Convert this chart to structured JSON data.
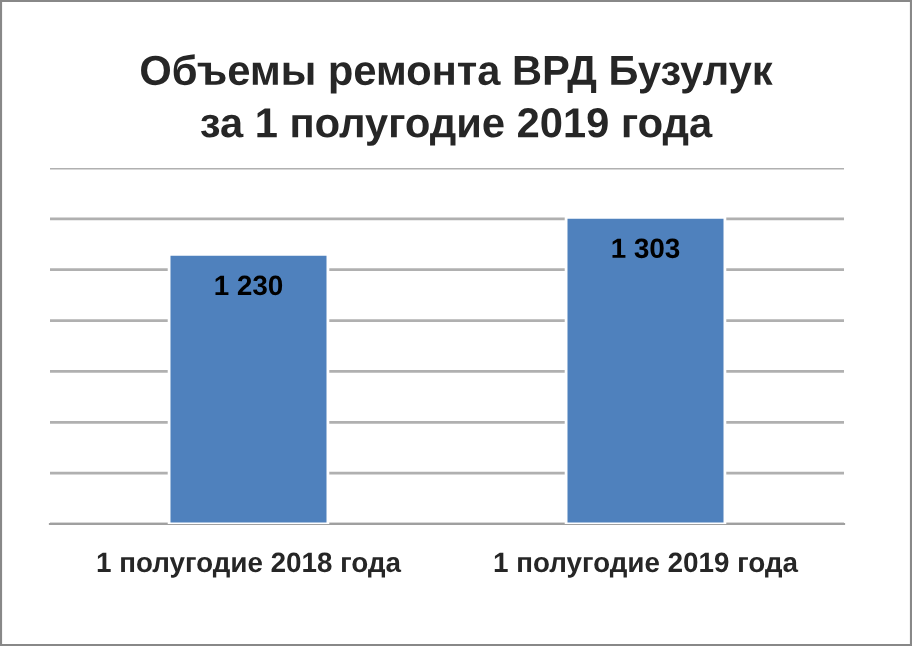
{
  "chart_data": {
    "type": "bar",
    "title": "Объемы ремонта ВРД Бузулук\nза 1 полугодие 2019 года",
    "categories": [
      "1 полугодие 2018 года",
      "1 полугодие 2019 года"
    ],
    "values": [
      1230,
      1303
    ],
    "value_labels": [
      "1 230",
      "1 303"
    ],
    "color": "#4f81bd",
    "ylim": [
      700,
      1400
    ],
    "yticks": [
      {
        "value": 700,
        "label": null
      },
      {
        "value": 800,
        "label": null
      },
      {
        "value": 900,
        "label": null
      },
      {
        "value": 1000,
        "label": null
      },
      {
        "value": 1100,
        "label": null
      },
      {
        "value": 1200,
        "label": null
      },
      {
        "value": 1300,
        "label": null
      },
      {
        "value": 1400,
        "label": null
      }
    ],
    "grid": "y",
    "tick_labels": "x"
  }
}
